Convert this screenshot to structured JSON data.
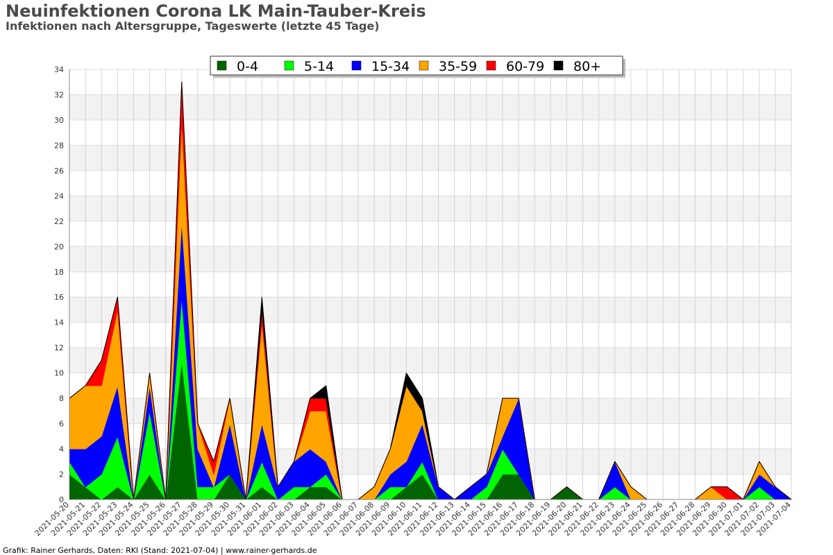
{
  "header": {
    "title": "Neuinfektionen Corona LK Main-Tauber-Kreis",
    "subtitle": "Infektionen nach Altersgruppe, Tageswerte (letzte 45 Tage)"
  },
  "footer": {
    "text": "Grafik: Rainer Gerhards, Daten: RKI (Stand: 2021-07-04) | www.rainer-gerhards.de"
  },
  "chart_data": {
    "type": "area",
    "stacked": true,
    "title": "Neuinfektionen Corona LK Main-Tauber-Kreis",
    "subtitle": "Infektionen nach Altersgruppe, Tageswerte (letzte 45 Tage)",
    "ylim": [
      0,
      34
    ],
    "yticks": [
      0,
      2,
      4,
      6,
      8,
      10,
      12,
      14,
      16,
      18,
      20,
      22,
      24,
      26,
      28,
      30,
      32,
      34
    ],
    "grid": true,
    "legend_position": "top-center",
    "x": [
      "2021-05-20",
      "2021-05-21",
      "2021-05-22",
      "2021-05-23",
      "2021-05-24",
      "2021-05-25",
      "2021-05-26",
      "2021-05-27",
      "2021-05-28",
      "2021-05-29",
      "2021-05-30",
      "2021-05-31",
      "2021-06-01",
      "2021-06-02",
      "2021-06-03",
      "2021-06-04",
      "2021-06-05",
      "2021-06-06",
      "2021-06-07",
      "2021-06-08",
      "2021-06-09",
      "2021-06-10",
      "2021-06-11",
      "2021-06-12",
      "2021-06-13",
      "2021-06-14",
      "2021-06-15",
      "2021-06-16",
      "2021-06-17",
      "2021-06-18",
      "2021-06-19",
      "2021-06-20",
      "2021-06-21",
      "2021-06-22",
      "2021-06-23",
      "2021-06-24",
      "2021-06-25",
      "2021-06-26",
      "2021-06-27",
      "2021-06-28",
      "2021-06-29",
      "2021-06-30",
      "2021-07-01",
      "2021-07-02",
      "2021-07-03",
      "2021-07-04"
    ],
    "series": [
      {
        "name": "0-4",
        "color": "#006400",
        "values": [
          2,
          1,
          0,
          1,
          0,
          2,
          0,
          11,
          0,
          0,
          2,
          0,
          1,
          0,
          0,
          1,
          1,
          0,
          0,
          0,
          0,
          1,
          2,
          0,
          0,
          0,
          0,
          2,
          2,
          0,
          0,
          1,
          0,
          0,
          0,
          0,
          0,
          0,
          0,
          0,
          0,
          0,
          0,
          0,
          0,
          0
        ]
      },
      {
        "name": "5-14",
        "color": "#00ff00",
        "values": [
          1,
          0,
          2,
          4,
          0,
          5,
          0,
          5,
          1,
          1,
          0,
          0,
          2,
          0,
          1,
          0,
          1,
          0,
          0,
          0,
          1,
          0,
          1,
          0,
          0,
          0,
          1,
          2,
          0,
          0,
          0,
          0,
          0,
          0,
          1,
          0,
          0,
          0,
          0,
          0,
          0,
          0,
          0,
          1,
          0,
          0
        ]
      },
      {
        "name": "15-34",
        "color": "#0000ff",
        "values": [
          1,
          3,
          3,
          4,
          0,
          2,
          0,
          6,
          3,
          0,
          4,
          0,
          3,
          1,
          2,
          3,
          1,
          0,
          0,
          0,
          1,
          2,
          3,
          1,
          0,
          1,
          1,
          1,
          6,
          0,
          0,
          0,
          0,
          0,
          2,
          0,
          0,
          0,
          0,
          0,
          0,
          0,
          0,
          1,
          1,
          0
        ]
      },
      {
        "name": "35-59",
        "color": "#ffa500",
        "values": [
          4,
          5,
          4,
          6,
          0,
          1,
          0,
          8,
          2,
          1,
          2,
          0,
          8,
          0,
          0,
          3,
          4,
          0,
          0,
          1,
          2,
          6,
          1,
          0,
          0,
          0,
          0,
          3,
          0,
          0,
          0,
          0,
          0,
          0,
          0,
          1,
          0,
          0,
          0,
          0,
          1,
          0,
          0,
          1,
          0,
          0
        ]
      },
      {
        "name": "60-79",
        "color": "#ff0000",
        "values": [
          0,
          0,
          2,
          1,
          0,
          0,
          0,
          3,
          0,
          1,
          0,
          0,
          1,
          0,
          0,
          1,
          1,
          0,
          0,
          0,
          0,
          0,
          0,
          0,
          0,
          0,
          0,
          0,
          0,
          0,
          0,
          0,
          0,
          0,
          0,
          0,
          0,
          0,
          0,
          0,
          0,
          1,
          0,
          0,
          0,
          0
        ]
      },
      {
        "name": "80+",
        "color": "#000000",
        "values": [
          0,
          0,
          0,
          0,
          0,
          0,
          0,
          0,
          0,
          0,
          0,
          0,
          1,
          0,
          0,
          0,
          1,
          0,
          0,
          0,
          0,
          1,
          1,
          0,
          0,
          0,
          0,
          0,
          0,
          0,
          0,
          0,
          0,
          0,
          0,
          0,
          0,
          0,
          0,
          0,
          0,
          0,
          0,
          0,
          0,
          0
        ]
      }
    ]
  }
}
